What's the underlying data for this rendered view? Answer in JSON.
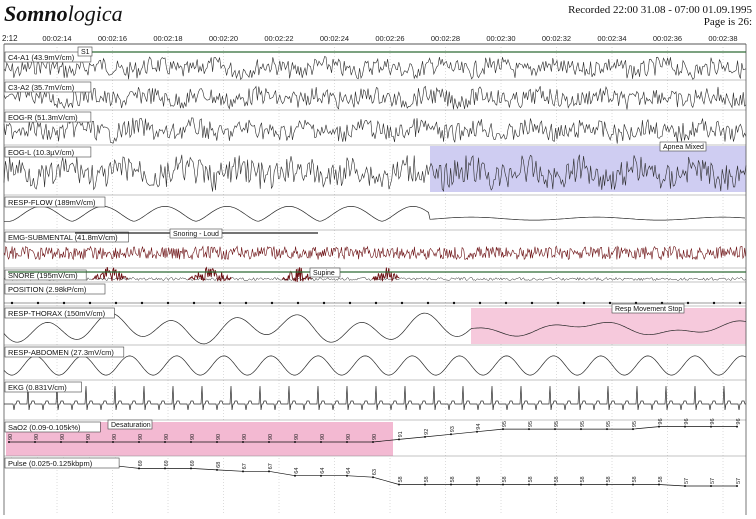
{
  "header": {
    "logo_main": "Somno",
    "logo_suffix": "logica",
    "recorded": "Recorded 22:00 31.08 - 07:00 01.09.1995",
    "page": "Page is 26:"
  },
  "time_axis": {
    "start_label": "2:12",
    "labels": [
      "00:02:14",
      "00:02:16",
      "00:02:18",
      "00:02:20",
      "00:02:22",
      "00:02:24",
      "00:02:26",
      "00:02:28",
      "00:02:30",
      "00:02:32",
      "00:02:34",
      "00:02:36",
      "00:02:38"
    ]
  },
  "colors": {
    "trace": "#2a2a2a",
    "snore": "#6b0f12",
    "apnea_shade": "#cfcdf2",
    "movement_shade": "#f6c9dc",
    "desat_shade": "#f3b9d2",
    "event_bar": "#2f6b35",
    "grid": "#b8b8b8",
    "border": "#555555"
  },
  "channels": [
    {
      "label": "C4-A1 (43.9mV/cm)",
      "kind": "eeg"
    },
    {
      "label": "C3-A2 (35.7mV/cm)",
      "kind": "eeg"
    },
    {
      "label": "EOG-R (51.3mV/cm)",
      "kind": "eog"
    },
    {
      "label": "EOG-L (10.3µV/cm)",
      "kind": "eog"
    },
    {
      "label": "RESP-FLOW (189mV/cm)",
      "kind": "flow"
    },
    {
      "label": "EMG-SUBMENTAL (41.8mV/cm)",
      "kind": "emg"
    },
    {
      "label": "SNORE (195mV/cm)",
      "kind": "snore"
    },
    {
      "label": "POSITION (2.98kP/cm)",
      "kind": "position"
    },
    {
      "label": "RESP-THORAX (150mV/cm)",
      "kind": "thorax"
    },
    {
      "label": "RESP-ABDOMEN (27.3mV/cm)",
      "kind": "abdomen"
    },
    {
      "label": "EKG (0.831V/cm)",
      "kind": "ekg"
    },
    {
      "label": "SaO2 (0.09-0.105k%)",
      "kind": "sao2"
    },
    {
      "label": "Pulse (0.025-0.125kbpm)",
      "kind": "pulse"
    }
  ],
  "events": {
    "s1": "S1",
    "apnea": "Apnea Mixed",
    "snoring": "Snoring - Loud",
    "supine": "Supine",
    "movement": "Resp Movement Stop",
    "desaturation": "Desaturation"
  },
  "sao2_values": [
    90,
    90,
    90,
    90,
    90,
    90,
    90,
    90,
    90,
    90,
    90,
    90,
    90,
    90,
    90,
    91,
    92,
    93,
    94,
    95,
    95,
    95,
    95,
    95,
    95,
    96,
    96,
    96,
    96
  ],
  "pulse_values": [
    71,
    71,
    71,
    71,
    71,
    69,
    69,
    69,
    68,
    67,
    67,
    64,
    64,
    64,
    63,
    58,
    58,
    58,
    58,
    58,
    58,
    58,
    58,
    58,
    58,
    58,
    57,
    57,
    57
  ]
}
